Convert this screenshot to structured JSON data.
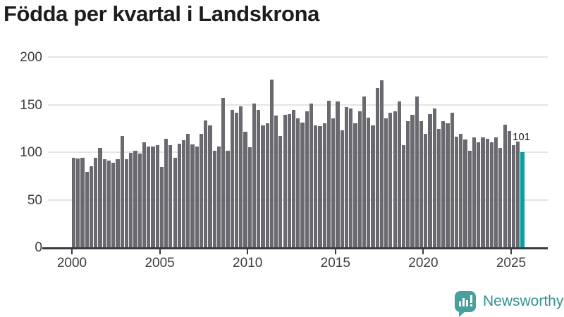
{
  "title": "Födda per kvartal i Landskrona",
  "annotation": {
    "label": "101"
  },
  "branding": {
    "name": "Newsworthy",
    "icon": "newsworthy-logo-icon"
  },
  "colors": {
    "bar": "#69696f",
    "highlight": "#0aa0a0",
    "grid": "#e4e4e4",
    "axis": "#3b3b40",
    "title_text": "#1d1d1d",
    "tick_text": "#3d3d3d",
    "brand_icon": "#46a19c",
    "brand_text": "#31918e"
  },
  "chart_data": {
    "type": "bar",
    "title": "Födda per kvartal i Landskrona",
    "xlabel": "",
    "ylabel": "",
    "x_start": "2000-Q1",
    "x_end": "2025-Q3",
    "x_tick_labels": [
      "2000",
      "2005",
      "2010",
      "2015",
      "2020",
      "2025"
    ],
    "y_tick_labels": [
      "0",
      "50",
      "100",
      "150",
      "200"
    ],
    "ylim": [
      0,
      200
    ],
    "grid": true,
    "legend": false,
    "values": [
      95,
      94,
      95,
      80,
      86,
      95,
      105,
      93,
      92,
      90,
      93,
      118,
      93,
      100,
      102,
      99,
      111,
      107,
      107,
      108,
      85,
      115,
      108,
      95,
      110,
      113,
      120,
      109,
      107,
      120,
      134,
      129,
      102,
      107,
      158,
      102,
      145,
      142,
      149,
      122,
      106,
      152,
      145,
      129,
      131,
      177,
      139,
      118,
      140,
      141,
      145,
      136,
      132,
      144,
      152,
      129,
      128,
      131,
      155,
      136,
      154,
      124,
      148,
      147,
      131,
      144,
      159,
      137,
      129,
      168,
      176,
      136,
      142,
      144,
      154,
      108,
      133,
      140,
      159,
      133,
      120,
      141,
      147,
      125,
      133,
      131,
      142,
      117,
      120,
      114,
      102,
      116,
      111,
      116,
      115,
      111,
      116,
      105,
      130,
      123,
      108,
      112,
      101
    ],
    "highlight_last_bar": true,
    "highlight_last_value": 101,
    "annotation_text": "101"
  }
}
